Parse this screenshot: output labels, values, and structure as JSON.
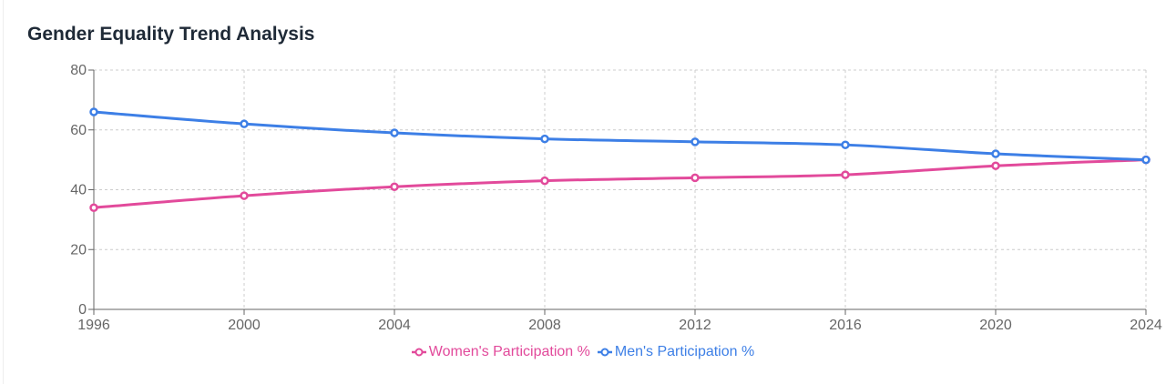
{
  "title": "Gender Equality Trend Analysis",
  "chart_data": {
    "type": "line",
    "title": "Gender Equality Trend Analysis",
    "x": [
      1996,
      2000,
      2004,
      2008,
      2012,
      2016,
      2020,
      2024
    ],
    "xticks": [
      "1996",
      "2000",
      "2004",
      "2008",
      "2012",
      "2016",
      "2020",
      "2024"
    ],
    "yticks": [
      "0",
      "20",
      "40",
      "60",
      "80"
    ],
    "ylim": [
      0,
      80
    ],
    "grid": true,
    "legend_position": "bottom",
    "series": [
      {
        "name": "Women's Participation %",
        "color": "#e24a9b",
        "values": [
          34,
          38,
          41,
          43,
          44,
          45,
          48,
          50
        ]
      },
      {
        "name": "Men's Participation %",
        "color": "#3d7fe6",
        "values": [
          66,
          62,
          59,
          57,
          56,
          55,
          52,
          50
        ]
      }
    ]
  }
}
